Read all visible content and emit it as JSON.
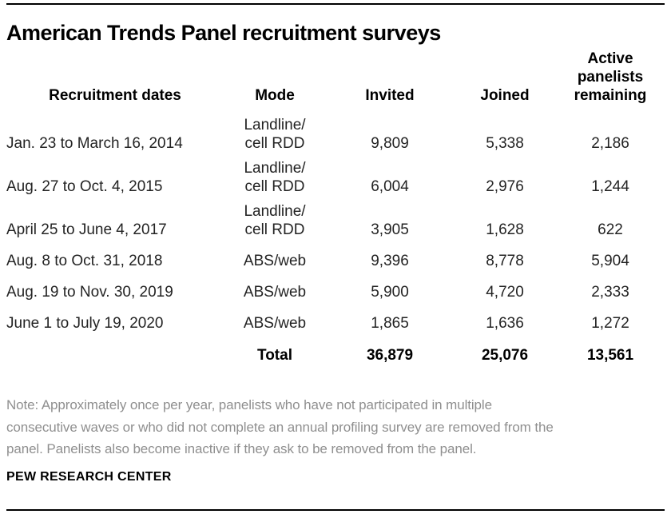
{
  "title": "American Trends Panel recruitment surveys",
  "table": {
    "headers": {
      "dates": "Recruitment dates",
      "mode": "Mode",
      "invited": "Invited",
      "joined": "Joined",
      "remaining": "Active\npanelists\nremaining"
    },
    "rows": [
      {
        "dates": "Jan. 23 to March 16, 2014",
        "mode": "Landline/\ncell RDD",
        "invited": "9,809",
        "joined": "5,338",
        "remaining": "2,186"
      },
      {
        "dates": "Aug. 27 to Oct. 4, 2015",
        "mode": "Landline/\ncell RDD",
        "invited": "6,004",
        "joined": "2,976",
        "remaining": "1,244"
      },
      {
        "dates": "April 25 to June 4, 2017",
        "mode": "Landline/\ncell RDD",
        "invited": "3,905",
        "joined": "1,628",
        "remaining": "622"
      },
      {
        "dates": "Aug. 8 to Oct. 31, 2018",
        "mode": "ABS/web",
        "invited": "9,396",
        "joined": "8,778",
        "remaining": "5,904"
      },
      {
        "dates": "Aug. 19 to Nov. 30, 2019",
        "mode": "ABS/web",
        "invited": "5,900",
        "joined": "4,720",
        "remaining": "2,333"
      },
      {
        "dates": "June 1 to July 19, 2020",
        "mode": "ABS/web",
        "invited": "1,865",
        "joined": "1,636",
        "remaining": "1,272"
      }
    ],
    "total": {
      "label": "Total",
      "invited": "36,879",
      "joined": "25,076",
      "remaining": "13,561"
    }
  },
  "note": {
    "lines": [
      "Note: Approximately once per year, panelists who have not participated in multiple",
      "consecutive waves or who did not complete an annual profiling survey are removed from the",
      "panel. Panelists also become inactive if they ask to be removed from the panel."
    ]
  },
  "footer": "PEW RESEARCH CENTER",
  "colors": {
    "text": "#232323",
    "heading": "#000000",
    "note": "#8f8f8f",
    "rule": "#000000",
    "background": "#ffffff"
  },
  "chart_data": {
    "type": "table",
    "title": "American Trends Panel recruitment surveys",
    "columns": [
      "Recruitment dates",
      "Mode",
      "Invited",
      "Joined",
      "Active panelists remaining"
    ],
    "rows": [
      [
        "Jan. 23 to March 16, 2014",
        "Landline/cell RDD",
        9809,
        5338,
        2186
      ],
      [
        "Aug. 27 to Oct. 4, 2015",
        "Landline/cell RDD",
        6004,
        2976,
        1244
      ],
      [
        "April 25 to June 4, 2017",
        "Landline/cell RDD",
        3905,
        1628,
        622
      ],
      [
        "Aug. 8 to Oct. 31, 2018",
        "ABS/web",
        9396,
        8778,
        5904
      ],
      [
        "Aug. 19 to Nov. 30, 2019",
        "ABS/web",
        5900,
        4720,
        2333
      ],
      [
        "June 1 to July 19, 2020",
        "ABS/web",
        1865,
        1636,
        1272
      ]
    ],
    "total_row": [
      "",
      "Total",
      36879,
      25076,
      13561
    ],
    "note": "Note: Approximately once per year, panelists who have not participated in multiple consecutive waves or who did not complete an annual profiling survey are removed from the panel. Panelists also become inactive if they ask to be removed from the panel.",
    "source_label": "PEW RESEARCH CENTER",
    "layout": {
      "grid": false,
      "column_alignment": [
        "left",
        "center",
        "center",
        "center",
        "center"
      ]
    }
  }
}
